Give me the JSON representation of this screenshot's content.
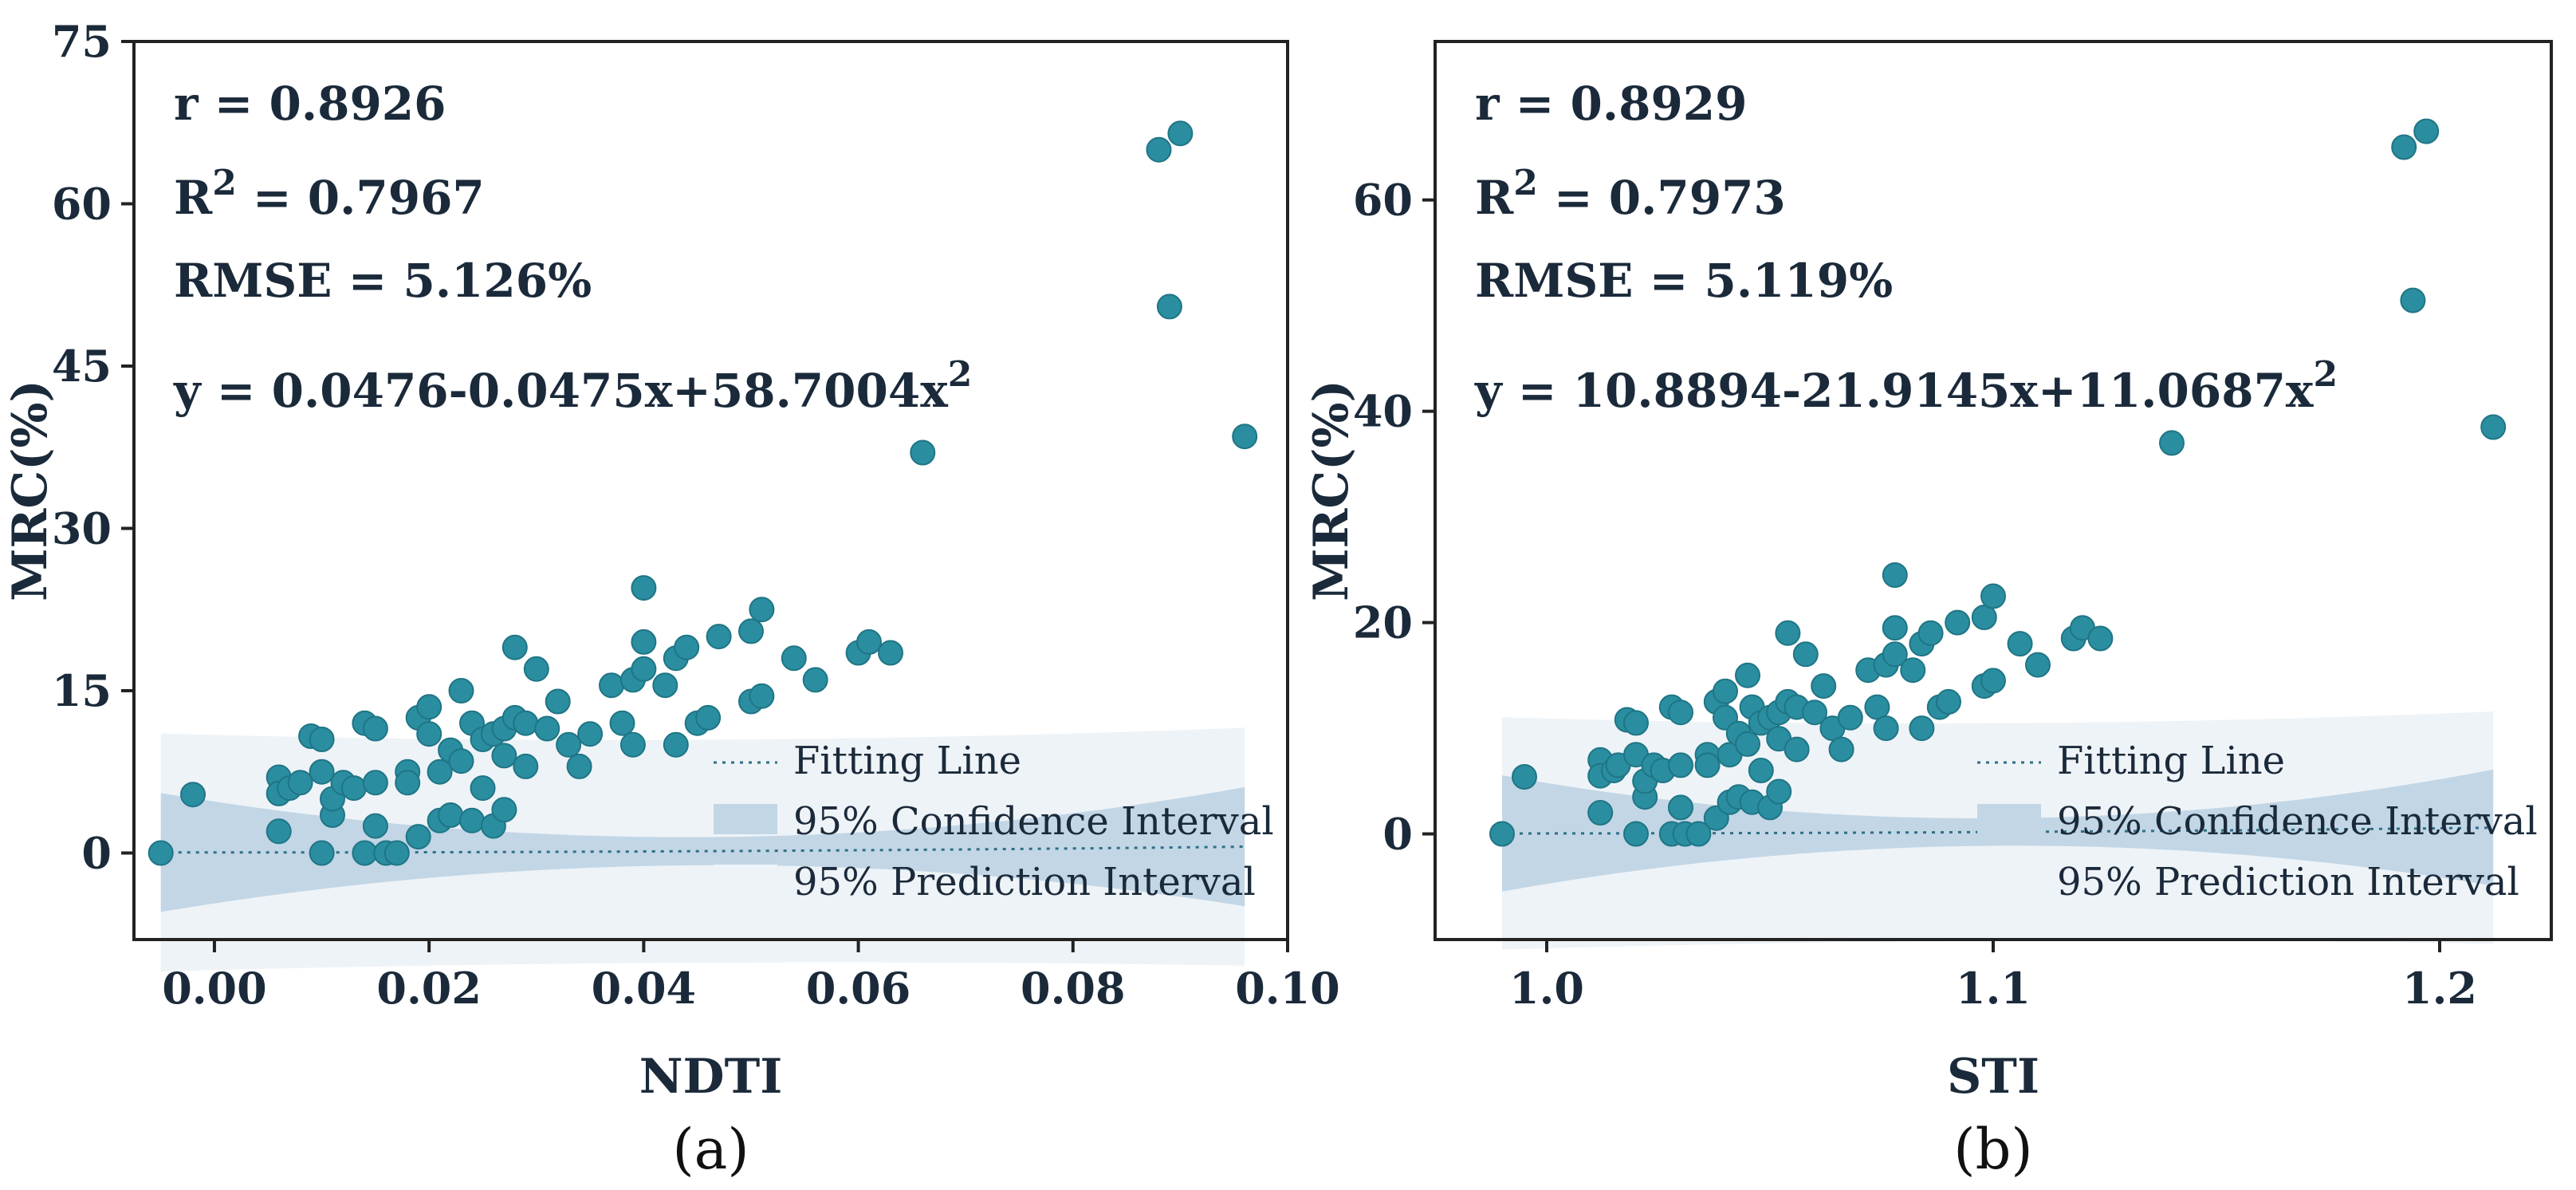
{
  "chart_data": [
    {
      "type": "scatter",
      "panel_label": "(a)",
      "xlabel": "NDTI",
      "ylabel": "MRC(%)",
      "xlim": [
        -0.0075,
        0.1
      ],
      "ylim": [
        -8,
        75
      ],
      "xticks": [
        0.0,
        0.02,
        0.04,
        0.06,
        0.08,
        0.1
      ],
      "xtick_labels": [
        "0.00",
        "0.02",
        "0.04",
        "0.06",
        "0.08",
        "0.10"
      ],
      "yticks": [
        0,
        15,
        30,
        45,
        60,
        75
      ],
      "ytick_labels": [
        "0",
        "15",
        "30",
        "45",
        "60",
        "75"
      ],
      "stats": {
        "r": "r = 0.8926",
        "r2_prefix": "R",
        "r2_sup": "2",
        "r2_value": " = 0.7967",
        "rmse": "RMSE = 5.126%",
        "equation": "y = 0.0476-0.0475x+58.7004x",
        "equation_sup": "2"
      },
      "fit": {
        "a": 0.0476,
        "b": -0.0475,
        "c": 58.7004,
        "x_range": [
          -0.005,
          0.096
        ]
      },
      "ci_halfwidth": {
        "at_ends": 5.5,
        "at_center": 1.3
      },
      "pi_halfwidth": {
        "at_ends": 11.0,
        "at_center": 10.3
      },
      "legend": [
        "Fitting Line",
        "95% Confidence Interval",
        "95% Prediction Interval"
      ],
      "points": [
        [
          -0.005,
          0.0
        ],
        [
          -0.002,
          5.4
        ],
        [
          0.006,
          7.0
        ],
        [
          0.006,
          5.5
        ],
        [
          0.006,
          2.0
        ],
        [
          0.007,
          6.0
        ],
        [
          0.008,
          6.5
        ],
        [
          0.009,
          10.8
        ],
        [
          0.01,
          10.5
        ],
        [
          0.01,
          7.5
        ],
        [
          0.01,
          0.0
        ],
        [
          0.011,
          3.5
        ],
        [
          0.011,
          5.0
        ],
        [
          0.012,
          6.5
        ],
        [
          0.013,
          6.0
        ],
        [
          0.014,
          12.0
        ],
        [
          0.014,
          0.0
        ],
        [
          0.015,
          11.5
        ],
        [
          0.015,
          2.5
        ],
        [
          0.015,
          6.5
        ],
        [
          0.016,
          0.0
        ],
        [
          0.017,
          0.0
        ],
        [
          0.018,
          7.5
        ],
        [
          0.018,
          6.5
        ],
        [
          0.019,
          12.5
        ],
        [
          0.019,
          1.5
        ],
        [
          0.02,
          11.0
        ],
        [
          0.02,
          13.5
        ],
        [
          0.021,
          3.0
        ],
        [
          0.021,
          7.5
        ],
        [
          0.022,
          9.5
        ],
        [
          0.022,
          3.5
        ],
        [
          0.023,
          15.0
        ],
        [
          0.023,
          8.5
        ],
        [
          0.024,
          12.0
        ],
        [
          0.024,
          3.0
        ],
        [
          0.025,
          10.5
        ],
        [
          0.025,
          6.0
        ],
        [
          0.026,
          2.5
        ],
        [
          0.026,
          11.0
        ],
        [
          0.027,
          4.0
        ],
        [
          0.027,
          9.0
        ],
        [
          0.027,
          11.5
        ],
        [
          0.028,
          19.0
        ],
        [
          0.028,
          12.5
        ],
        [
          0.029,
          8.0
        ],
        [
          0.029,
          12.0
        ],
        [
          0.03,
          17.0
        ],
        [
          0.031,
          11.5
        ],
        [
          0.032,
          14.0
        ],
        [
          0.033,
          10.0
        ],
        [
          0.034,
          8.0
        ],
        [
          0.035,
          11.0
        ],
        [
          0.037,
          15.5
        ],
        [
          0.038,
          12.0
        ],
        [
          0.039,
          10.0
        ],
        [
          0.039,
          16.0
        ],
        [
          0.04,
          24.5
        ],
        [
          0.04,
          19.5
        ],
        [
          0.04,
          17.0
        ],
        [
          0.042,
          15.5
        ],
        [
          0.043,
          10.0
        ],
        [
          0.043,
          18.0
        ],
        [
          0.044,
          19.0
        ],
        [
          0.045,
          12.0
        ],
        [
          0.046,
          12.5
        ],
        [
          0.047,
          20.0
        ],
        [
          0.05,
          20.5
        ],
        [
          0.05,
          14.0
        ],
        [
          0.051,
          22.5
        ],
        [
          0.051,
          14.5
        ],
        [
          0.054,
          18.0
        ],
        [
          0.056,
          16.0
        ],
        [
          0.06,
          18.5
        ],
        [
          0.061,
          19.5
        ],
        [
          0.063,
          18.5
        ],
        [
          0.066,
          37.0
        ],
        [
          0.088,
          65.0
        ],
        [
          0.089,
          50.5
        ],
        [
          0.09,
          66.5
        ],
        [
          0.096,
          38.5
        ]
      ]
    },
    {
      "type": "scatter",
      "panel_label": "(b)",
      "xlabel": "STI",
      "ylabel": "MRC(%)",
      "xlim": [
        0.975,
        1.225
      ],
      "ylim": [
        -10,
        75
      ],
      "xticks": [
        1.0,
        1.1,
        1.2
      ],
      "xtick_labels": [
        "1.0",
        "1.1",
        "1.2"
      ],
      "yticks": [
        0,
        20,
        40,
        60
      ],
      "ytick_labels": [
        "0",
        "20",
        "40",
        "60"
      ],
      "stats": {
        "r": "r = 0.8929",
        "r2_prefix": "R",
        "r2_sup": "2",
        "r2_value": " = 0.7973",
        "rmse": "RMSE = 5.119%",
        "equation": "y = 10.8894-21.9145x+11.0687x",
        "equation_sup": "2"
      },
      "fit": {
        "a": 10.8894,
        "b": -21.9145,
        "c": 11.0687,
        "x_range": [
          0.99,
          1.212
        ]
      },
      "ci_halfwidth": {
        "at_ends": 5.5,
        "at_center": 1.3
      },
      "pi_halfwidth": {
        "at_ends": 11.0,
        "at_center": 10.3
      },
      "legend": [
        "Fitting Line",
        "95% Confidence Interval",
        "95% Prediction Interval"
      ],
      "points": [
        [
          0.99,
          0.0
        ],
        [
          0.995,
          5.4
        ],
        [
          1.012,
          7.0
        ],
        [
          1.012,
          5.5
        ],
        [
          1.012,
          2.0
        ],
        [
          1.015,
          6.0
        ],
        [
          1.016,
          6.5
        ],
        [
          1.018,
          10.8
        ],
        [
          1.02,
          10.5
        ],
        [
          1.02,
          7.5
        ],
        [
          1.02,
          0.0
        ],
        [
          1.022,
          3.5
        ],
        [
          1.022,
          5.0
        ],
        [
          1.024,
          6.5
        ],
        [
          1.026,
          6.0
        ],
        [
          1.028,
          12.0
        ],
        [
          1.028,
          0.0
        ],
        [
          1.03,
          11.5
        ],
        [
          1.03,
          2.5
        ],
        [
          1.03,
          6.5
        ],
        [
          1.031,
          0.0
        ],
        [
          1.034,
          0.0
        ],
        [
          1.036,
          7.5
        ],
        [
          1.036,
          6.5
        ],
        [
          1.038,
          12.5
        ],
        [
          1.038,
          1.5
        ],
        [
          1.04,
          11.0
        ],
        [
          1.04,
          13.5
        ],
        [
          1.041,
          3.0
        ],
        [
          1.041,
          7.5
        ],
        [
          1.043,
          9.5
        ],
        [
          1.043,
          3.5
        ],
        [
          1.045,
          15.0
        ],
        [
          1.045,
          8.5
        ],
        [
          1.046,
          12.0
        ],
        [
          1.046,
          3.0
        ],
        [
          1.048,
          10.5
        ],
        [
          1.048,
          6.0
        ],
        [
          1.05,
          2.5
        ],
        [
          1.05,
          11.0
        ],
        [
          1.052,
          4.0
        ],
        [
          1.052,
          9.0
        ],
        [
          1.052,
          11.5
        ],
        [
          1.054,
          19.0
        ],
        [
          1.054,
          12.5
        ],
        [
          1.056,
          8.0
        ],
        [
          1.056,
          12.0
        ],
        [
          1.058,
          17.0
        ],
        [
          1.06,
          11.5
        ],
        [
          1.062,
          14.0
        ],
        [
          1.064,
          10.0
        ],
        [
          1.066,
          8.0
        ],
        [
          1.068,
          11.0
        ],
        [
          1.072,
          15.5
        ],
        [
          1.074,
          12.0
        ],
        [
          1.076,
          10.0
        ],
        [
          1.076,
          16.0
        ],
        [
          1.078,
          24.5
        ],
        [
          1.078,
          19.5
        ],
        [
          1.078,
          17.0
        ],
        [
          1.082,
          15.5
        ],
        [
          1.084,
          10.0
        ],
        [
          1.084,
          18.0
        ],
        [
          1.086,
          19.0
        ],
        [
          1.088,
          12.0
        ],
        [
          1.09,
          12.5
        ],
        [
          1.092,
          20.0
        ],
        [
          1.098,
          20.5
        ],
        [
          1.098,
          14.0
        ],
        [
          1.1,
          22.5
        ],
        [
          1.1,
          14.5
        ],
        [
          1.106,
          18.0
        ],
        [
          1.11,
          16.0
        ],
        [
          1.118,
          18.5
        ],
        [
          1.12,
          19.5
        ],
        [
          1.124,
          18.5
        ],
        [
          1.14,
          37.0
        ],
        [
          1.192,
          65.0
        ],
        [
          1.194,
          50.5
        ],
        [
          1.197,
          66.5
        ],
        [
          1.212,
          38.5
        ]
      ]
    }
  ]
}
